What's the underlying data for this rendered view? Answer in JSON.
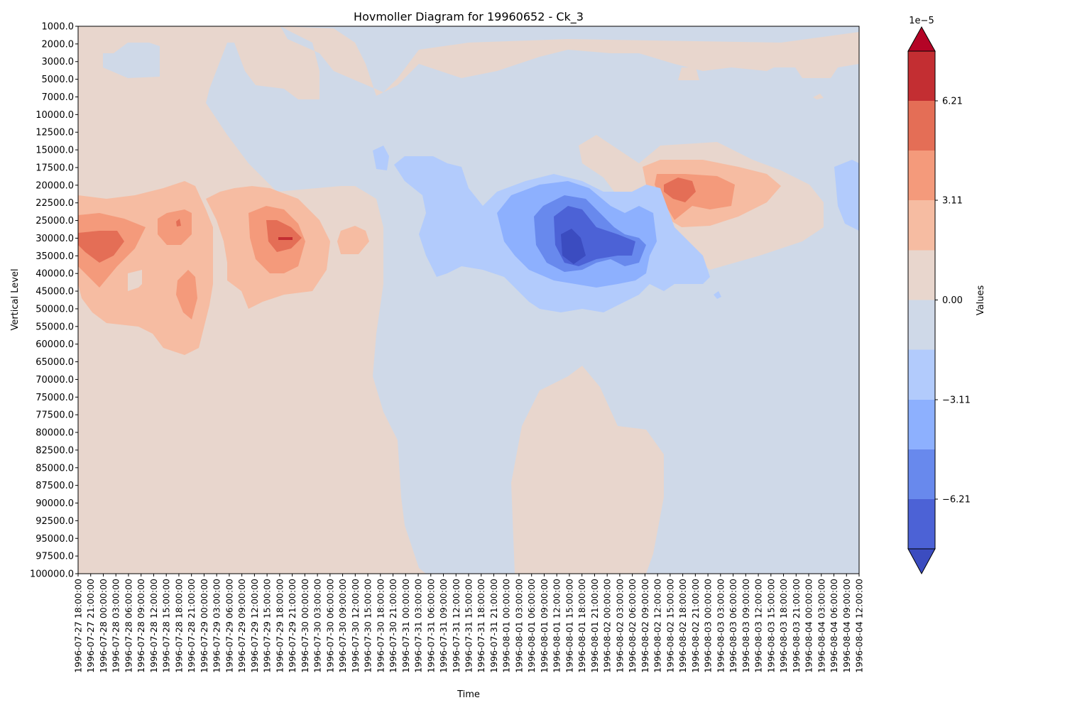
{
  "chart_data": {
    "type": "heatmap",
    "subtype": "filled-contour",
    "title": "Hovmoller Diagram for 19960652 - Ck_3",
    "xlabel": "Time",
    "ylabel": "Vertical Level",
    "y_inverted": true,
    "grid": false,
    "y_ticks": [
      "1000.0",
      "2000.0",
      "3000.0",
      "5000.0",
      "7000.0",
      "10000.0",
      "12500.0",
      "15000.0",
      "17500.0",
      "20000.0",
      "22500.0",
      "25000.0",
      "30000.0",
      "35000.0",
      "40000.0",
      "45000.0",
      "50000.0",
      "55000.0",
      "60000.0",
      "65000.0",
      "70000.0",
      "75000.0",
      "77500.0",
      "80000.0",
      "82500.0",
      "85000.0",
      "87500.0",
      "90000.0",
      "92500.0",
      "95000.0",
      "97500.0",
      "100000.0"
    ],
    "x_ticks": [
      "1996-07-27 18:00:00",
      "1996-07-27 21:00:00",
      "1996-07-28 00:00:00",
      "1996-07-28 03:00:00",
      "1996-07-28 06:00:00",
      "1996-07-28 09:00:00",
      "1996-07-28 12:00:00",
      "1996-07-28 15:00:00",
      "1996-07-28 18:00:00",
      "1996-07-28 21:00:00",
      "1996-07-29 00:00:00",
      "1996-07-29 03:00:00",
      "1996-07-29 06:00:00",
      "1996-07-29 09:00:00",
      "1996-07-29 12:00:00",
      "1996-07-29 15:00:00",
      "1996-07-29 18:00:00",
      "1996-07-29 21:00:00",
      "1996-07-30 00:00:00",
      "1996-07-30 03:00:00",
      "1996-07-30 06:00:00",
      "1996-07-30 09:00:00",
      "1996-07-30 12:00:00",
      "1996-07-30 15:00:00",
      "1996-07-30 18:00:00",
      "1996-07-30 21:00:00",
      "1996-07-31 00:00:00",
      "1996-07-31 03:00:00",
      "1996-07-31 06:00:00",
      "1996-07-31 09:00:00",
      "1996-07-31 12:00:00",
      "1996-07-31 15:00:00",
      "1996-07-31 18:00:00",
      "1996-07-31 21:00:00",
      "1996-08-01 00:00:00",
      "1996-08-01 03:00:00",
      "1996-08-01 06:00:00",
      "1996-08-01 09:00:00",
      "1996-08-01 12:00:00",
      "1996-08-01 15:00:00",
      "1996-08-01 18:00:00",
      "1996-08-01 21:00:00",
      "1996-08-02 00:00:00",
      "1996-08-02 03:00:00",
      "1996-08-02 06:00:00",
      "1996-08-02 09:00:00",
      "1996-08-02 12:00:00",
      "1996-08-02 15:00:00",
      "1996-08-02 18:00:00",
      "1996-08-02 21:00:00",
      "1996-08-03 00:00:00",
      "1996-08-03 03:00:00",
      "1996-08-03 06:00:00",
      "1996-08-03 09:00:00",
      "1996-08-03 12:00:00",
      "1996-08-03 15:00:00",
      "1996-08-03 18:00:00",
      "1996-08-03 21:00:00",
      "1996-08-04 00:00:00",
      "1996-08-04 03:00:00",
      "1996-08-04 06:00:00",
      "1996-08-04 09:00:00",
      "1996-08-04 12:00:00"
    ],
    "colorbar": {
      "label": "Values",
      "exponent_label": "1e−5",
      "scale": 1e-05,
      "tick_labels": [
        "6.21",
        "3.11",
        "0.00",
        "−3.11",
        "−6.21"
      ],
      "tick_values": [
        6.21,
        3.11,
        0.0,
        -3.11,
        -6.21
      ],
      "levels": [
        -7.76,
        -6.21,
        -4.66,
        -3.11,
        -1.55,
        0.0,
        1.55,
        3.11,
        4.66,
        6.21,
        7.76
      ],
      "colors": [
        "#3b4cc0",
        "#4c62d6",
        "#6889ed",
        "#8db0fe",
        "#b2cbfc",
        "#cfd9e8",
        "#e8d6cd",
        "#f6bca2",
        "#f49a7b",
        "#e46e56",
        "#c32e32",
        "#b40426"
      ],
      "extend": "both"
    },
    "background_value_color": "#cfd9e8",
    "features": [
      {
        "sign": "positive",
        "time_range": [
          "1996-07-27 18:00:00",
          "1996-07-30 21:00:00"
        ],
        "level_range": [
          "1000.0",
          "100000.0"
        ],
        "peak": "~5e-5 near 30000.0"
      },
      {
        "sign": "positive",
        "time_range": [
          "1996-08-02 12:00:00",
          "1996-08-03 09:00:00"
        ],
        "level_range": [
          "15000.0",
          "35000.0"
        ],
        "peak": "~5e-5 near 20000.0"
      },
      {
        "sign": "negative",
        "time_range": [
          "1996-07-31 00:00:00",
          "1996-08-02 12:00:00"
        ],
        "level_range": [
          "15000.0",
          "50000.0"
        ],
        "peak": "~-7e-5 near 35000.0"
      }
    ]
  }
}
